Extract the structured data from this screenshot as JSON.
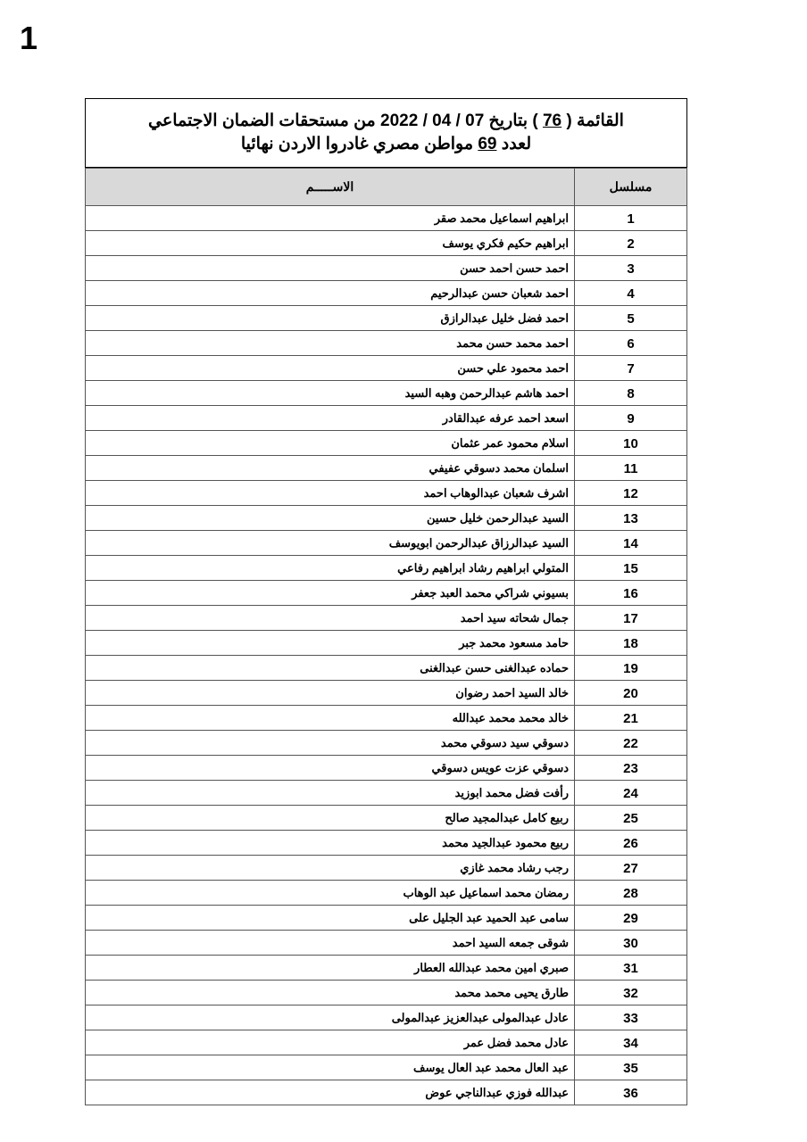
{
  "page_number": "1",
  "title": {
    "line1_prefix": "القائمة (",
    "list_number": "76",
    "line1_suffix": ") بتاريخ 07 / 04 / 2022 من مستحقات الضمان الاجتماعي",
    "line2_prefix": "لعدد",
    "count": "69",
    "line2_suffix": "مواطن مصري غادروا الاردن نهائيا"
  },
  "table": {
    "headers": {
      "serial": "مسلسل",
      "name": "الاســـــم"
    },
    "rows": [
      {
        "n": "1",
        "name": "ابراهيم اسماعيل محمد صقر"
      },
      {
        "n": "2",
        "name": "ابراهيم حكيم فكري يوسف"
      },
      {
        "n": "3",
        "name": "احمد حسن احمد حسن"
      },
      {
        "n": "4",
        "name": "احمد شعبان حسن عبدالرحيم"
      },
      {
        "n": "5",
        "name": "احمد فضل خليل عبدالرازق"
      },
      {
        "n": "6",
        "name": "احمد محمد حسن محمد"
      },
      {
        "n": "7",
        "name": "احمد محمود علي حسن"
      },
      {
        "n": "8",
        "name": "احمد هاشم عبدالرحمن وهبه السيد"
      },
      {
        "n": "9",
        "name": "اسعد احمد عرفه عبدالقادر"
      },
      {
        "n": "10",
        "name": "اسلام محمود عمر عثمان"
      },
      {
        "n": "11",
        "name": "اسلمان محمد دسوقي عفيفي"
      },
      {
        "n": "12",
        "name": "اشرف شعبان عبدالوهاب احمد"
      },
      {
        "n": "13",
        "name": "السيد عبدالرحمن خليل حسين"
      },
      {
        "n": "14",
        "name": "السيد عبدالرزاق عبدالرحمن ابويوسف"
      },
      {
        "n": "15",
        "name": "المتولي ابراهيم رشاد ابراهيم رفاعي"
      },
      {
        "n": "16",
        "name": "بسيوني شراكي محمد العبد جعفر"
      },
      {
        "n": "17",
        "name": "جمال شحاته سيد احمد"
      },
      {
        "n": "18",
        "name": "حامد مسعود محمد جبر"
      },
      {
        "n": "19",
        "name": "حماده عبدالغنى حسن عبدالغنى"
      },
      {
        "n": "20",
        "name": "خالد السيد احمد رضوان"
      },
      {
        "n": "21",
        "name": "خالد محمد محمد عبدالله"
      },
      {
        "n": "22",
        "name": "دسوقي سيد دسوقي محمد"
      },
      {
        "n": "23",
        "name": "دسوقي عزت عويس دسوقي"
      },
      {
        "n": "24",
        "name": "رأفت فضل محمد ابوزيد"
      },
      {
        "n": "25",
        "name": "ربيع كامل عبدالمجيد صالح"
      },
      {
        "n": "26",
        "name": "ربيع محمود عبدالجيد محمد"
      },
      {
        "n": "27",
        "name": "رجب رشاد محمد غازي"
      },
      {
        "n": "28",
        "name": "رمضان محمد اسماعيل عبد الوهاب"
      },
      {
        "n": "29",
        "name": "سامى عبد الحميد عبد الجليل على"
      },
      {
        "n": "30",
        "name": "شوقى جمعه السيد احمد"
      },
      {
        "n": "31",
        "name": "صبري امين محمد عبدالله العطار"
      },
      {
        "n": "32",
        "name": "طارق يحيى محمد محمد"
      },
      {
        "n": "33",
        "name": "عادل عبدالمولى عبدالعزيز عبدالمولى"
      },
      {
        "n": "34",
        "name": "عادل محمد فضل عمر"
      },
      {
        "n": "35",
        "name": "عبد العال محمد عبد العال يوسف"
      },
      {
        "n": "36",
        "name": "عبدالله فوزي عبدالناجي عوض"
      }
    ]
  }
}
